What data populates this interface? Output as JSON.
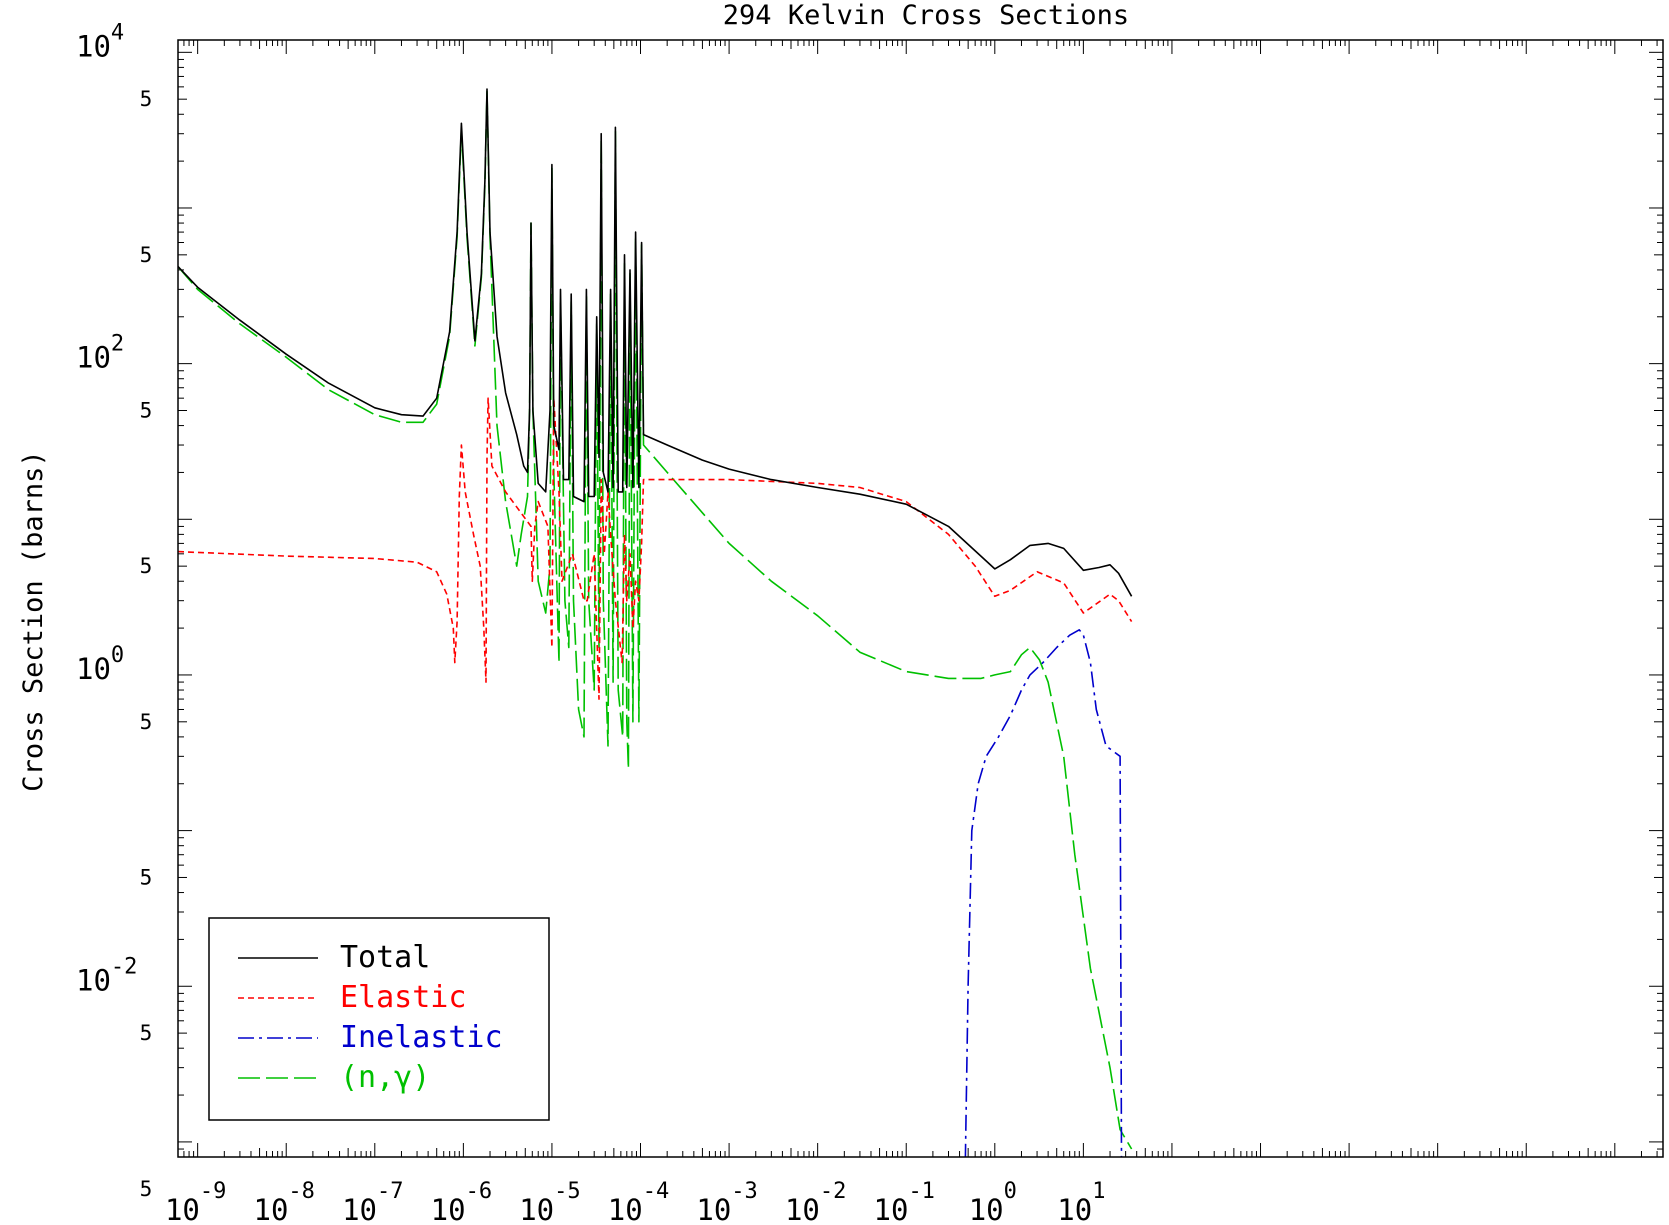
{
  "chart_data": {
    "type": "line",
    "title": "294 Kelvin Cross Sections",
    "ylabel": "Cross Section (barns)",
    "xlabel": "",
    "x_scale": "log",
    "y_scale": "log",
    "xlim": [
      6e-10,
      35000000.0
    ],
    "ylim": [
      0.0008,
      12000
    ],
    "x_ticks": [
      {
        "value": 1e-09,
        "base": "10",
        "exp": "-9"
      },
      {
        "value": 1e-08,
        "base": "10",
        "exp": "-8"
      },
      {
        "value": 1e-07,
        "base": "10",
        "exp": "-7"
      },
      {
        "value": 1e-06,
        "base": "10",
        "exp": "-6"
      },
      {
        "value": 1e-05,
        "base": "10",
        "exp": "-5"
      },
      {
        "value": 0.0001,
        "base": "10",
        "exp": "-4"
      },
      {
        "value": 0.001,
        "base": "10",
        "exp": "-3"
      },
      {
        "value": 0.01,
        "base": "10",
        "exp": "-2"
      },
      {
        "value": 0.1,
        "base": "10",
        "exp": "-1"
      },
      {
        "value": 1.0,
        "base": "10",
        "exp": "0"
      },
      {
        "value": 10.0,
        "base": "10",
        "exp": "1"
      }
    ],
    "y_ticks": [
      {
        "value": 10000,
        "base": "10",
        "exp": "4"
      },
      {
        "value": 100,
        "base": "10",
        "exp": "2"
      },
      {
        "value": 1,
        "base": "10",
        "exp": "0"
      },
      {
        "value": 0.01,
        "base": "10",
        "exp": "-2"
      }
    ],
    "y_minor_label": "5",
    "y_minor_values": [
      5000,
      500,
      50,
      5,
      0.5,
      0.05,
      0.005,
      0.0005
    ],
    "legend": {
      "position": "bottom-left",
      "entries": [
        {
          "label": "Total",
          "color": "#000000",
          "dash": "solid"
        },
        {
          "label": "Elastic",
          "color": "#ff0000",
          "dash": "short-dash"
        },
        {
          "label": "Inelastic",
          "color": "#0000cc",
          "dash": "dash-dot"
        },
        {
          "label": "(n,γ)",
          "color": "#00c000",
          "dash": "long-dash"
        }
      ]
    },
    "series": [
      {
        "name": "Total",
        "color": "#000000",
        "points": [
          [
            6e-10,
            420
          ],
          [
            1e-09,
            310
          ],
          [
            3e-09,
            190
          ],
          [
            1e-08,
            115
          ],
          [
            3e-08,
            75
          ],
          [
            1e-07,
            52
          ],
          [
            2e-07,
            47
          ],
          [
            3.5e-07,
            46
          ],
          [
            5e-07,
            60
          ],
          [
            7e-07,
            160
          ],
          [
            8.5e-07,
            700
          ],
          [
            9.5e-07,
            3500
          ],
          [
            1.1e-06,
            700
          ],
          [
            1.35e-06,
            140
          ],
          [
            1.6e-06,
            380
          ],
          [
            1.75e-06,
            1500
          ],
          [
            1.85e-06,
            5800
          ],
          [
            2e-06,
            700
          ],
          [
            2.4e-06,
            150
          ],
          [
            3e-06,
            65
          ],
          [
            4e-06,
            35
          ],
          [
            4.8e-06,
            22
          ],
          [
            5.3e-06,
            20
          ],
          [
            5.6e-06,
            50
          ],
          [
            5.8e-06,
            800
          ],
          [
            6.1e-06,
            50
          ],
          [
            7e-06,
            17
          ],
          [
            8.5e-06,
            15
          ],
          [
            9.5e-06,
            50
          ],
          [
            1e-05,
            1900
          ],
          [
            1.05e-05,
            40
          ],
          [
            1.2e-05,
            28
          ],
          [
            1.25e-05,
            300
          ],
          [
            1.35e-05,
            18
          ],
          [
            1.55e-05,
            18
          ],
          [
            1.65e-05,
            280
          ],
          [
            1.75e-05,
            14
          ],
          [
            2.3e-05,
            13
          ],
          [
            2.45e-05,
            300
          ],
          [
            2.6e-05,
            14
          ],
          [
            3e-05,
            14
          ],
          [
            3.2e-05,
            200
          ],
          [
            3.4e-05,
            25
          ],
          [
            3.6e-05,
            3000
          ],
          [
            3.8e-05,
            20
          ],
          [
            4.3e-05,
            15
          ],
          [
            4.6e-05,
            300
          ],
          [
            4.9e-05,
            16
          ],
          [
            5.2e-05,
            3300
          ],
          [
            5.6e-05,
            15
          ],
          [
            6.3e-05,
            15
          ],
          [
            6.6e-05,
            500
          ],
          [
            7e-05,
            16
          ],
          [
            7.6e-05,
            400
          ],
          [
            8.2e-05,
            16
          ],
          [
            8.8e-05,
            700
          ],
          [
            9.6e-05,
            16
          ],
          [
            0.000103,
            600
          ],
          [
            0.000108,
            35
          ],
          [
            0.0002,
            30
          ],
          [
            0.0005,
            24
          ],
          [
            0.001,
            21
          ],
          [
            0.003,
            18
          ],
          [
            0.01,
            16
          ],
          [
            0.03,
            14.5
          ],
          [
            0.1,
            12.5
          ],
          [
            0.3,
            9
          ],
          [
            1.0,
            4.8
          ],
          [
            1.5,
            5.5
          ],
          [
            2.5,
            6.8
          ],
          [
            4.0,
            7
          ],
          [
            6.0,
            6.5
          ],
          [
            10.0,
            4.7
          ],
          [
            15.0,
            4.9
          ],
          [
            20.0,
            5.1
          ],
          [
            25.0,
            4.5
          ],
          [
            35.0,
            3.2
          ]
        ]
      },
      {
        "name": "Elastic",
        "color": "#ff0000",
        "points": [
          [
            6e-10,
            6.2
          ],
          [
            1e-08,
            5.8
          ],
          [
            1e-07,
            5.6
          ],
          [
            3e-07,
            5.3
          ],
          [
            5e-07,
            4.6
          ],
          [
            6.5e-07,
            3.3
          ],
          [
            7.7e-07,
            2.0
          ],
          [
            8e-07,
            1.2
          ],
          [
            8.5e-07,
            2.2
          ],
          [
            9e-07,
            14
          ],
          [
            9.5e-07,
            30
          ],
          [
            1.05e-06,
            15
          ],
          [
            1.3e-06,
            8
          ],
          [
            1.55e-06,
            5
          ],
          [
            1.7e-06,
            2
          ],
          [
            1.8e-06,
            0.9
          ],
          [
            1.85e-06,
            25
          ],
          [
            1.9e-06,
            60
          ],
          [
            2.1e-06,
            22
          ],
          [
            3e-06,
            15
          ],
          [
            5.8e-06,
            9
          ],
          [
            6e-06,
            4
          ],
          [
            6.4e-06,
            9
          ],
          [
            7e-06,
            13
          ],
          [
            9e-06,
            9
          ],
          [
            1e-05,
            1.5
          ],
          [
            1.05e-05,
            60
          ],
          [
            1.2e-05,
            15
          ],
          [
            1.3e-05,
            4
          ],
          [
            1.7e-05,
            6
          ],
          [
            2.3e-05,
            3
          ],
          [
            2.5e-05,
            3
          ],
          [
            3e-05,
            6
          ],
          [
            3.4e-05,
            0.7
          ],
          [
            3.6e-05,
            18
          ],
          [
            3.9e-05,
            6
          ],
          [
            4.3e-05,
            15
          ],
          [
            4.6e-05,
            8
          ],
          [
            5.2e-05,
            3
          ],
          [
            6.2e-05,
            1.2
          ],
          [
            6.6e-05,
            8
          ],
          [
            7e-05,
            3
          ],
          [
            7.6e-05,
            6
          ],
          [
            8.2e-05,
            2
          ],
          [
            8.8e-05,
            4
          ],
          [
            9.6e-05,
            3
          ],
          [
            0.000103,
            7
          ],
          [
            0.000108,
            18
          ],
          [
            0.001,
            18
          ],
          [
            0.01,
            17
          ],
          [
            0.03,
            16
          ],
          [
            0.1,
            13
          ],
          [
            0.3,
            8
          ],
          [
            0.6,
            5
          ],
          [
            1.0,
            3.2
          ],
          [
            1.5,
            3.5
          ],
          [
            3.0,
            4.6
          ],
          [
            6.0,
            3.9
          ],
          [
            10.0,
            2.5
          ],
          [
            20.0,
            3.3
          ],
          [
            25.0,
            3.0
          ],
          [
            35.0,
            2.2
          ]
        ]
      },
      {
        "name": "Inelastic",
        "color": "#0000cc",
        "points": [
          [
            0.46,
            0.0005
          ],
          [
            0.5,
            0.01
          ],
          [
            0.55,
            0.1
          ],
          [
            0.65,
            0.2
          ],
          [
            0.8,
            0.3
          ],
          [
            1.1,
            0.4
          ],
          [
            1.5,
            0.55
          ],
          [
            2.0,
            0.8
          ],
          [
            2.5,
            1.0
          ],
          [
            3.5,
            1.2
          ],
          [
            5,
            1.5
          ],
          [
            7,
            1.8
          ],
          [
            9,
            1.95
          ],
          [
            10,
            1.8
          ],
          [
            12,
            1.2
          ],
          [
            14,
            0.6
          ],
          [
            18,
            0.35
          ],
          [
            26,
            0.3
          ],
          [
            27,
            0.0005
          ]
        ]
      },
      {
        "name": "(n,γ)",
        "color": "#00c000",
        "points": [
          [
            6e-10,
            420
          ],
          [
            1e-09,
            300
          ],
          [
            3e-09,
            180
          ],
          [
            1e-08,
            110
          ],
          [
            3e-08,
            68
          ],
          [
            1e-07,
            47
          ],
          [
            2e-07,
            42
          ],
          [
            3.5e-07,
            42
          ],
          [
            5e-07,
            55
          ],
          [
            7e-07,
            150
          ],
          [
            8.5e-07,
            650
          ],
          [
            9.5e-07,
            3200
          ],
          [
            1.1e-06,
            650
          ],
          [
            1.35e-06,
            130
          ],
          [
            1.6e-06,
            360
          ],
          [
            1.75e-06,
            1400
          ],
          [
            1.85e-06,
            5600
          ],
          [
            2e-06,
            650
          ],
          [
            2.4e-06,
            40
          ],
          [
            3e-06,
            13
          ],
          [
            4e-06,
            5
          ],
          [
            4.5e-06,
            8
          ],
          [
            5.3e-06,
            14
          ],
          [
            5.6e-06,
            50
          ],
          [
            5.8e-06,
            800
          ],
          [
            6.1e-06,
            50
          ],
          [
            7e-06,
            4
          ],
          [
            8.5e-06,
            2.5
          ],
          [
            9.5e-06,
            5
          ],
          [
            1e-05,
            1800
          ],
          [
            1.05e-05,
            20
          ],
          [
            1.2e-05,
            1.2
          ],
          [
            1.25e-05,
            250
          ],
          [
            1.4e-05,
            3
          ],
          [
            1.55e-05,
            1.5
          ],
          [
            1.65e-05,
            250
          ],
          [
            1.75e-05,
            3
          ],
          [
            2e-05,
            0.6
          ],
          [
            2.3e-05,
            0.4
          ],
          [
            2.45e-05,
            280
          ],
          [
            2.6e-05,
            3
          ],
          [
            3e-05,
            0.8
          ],
          [
            3.2e-05,
            180
          ],
          [
            3.4e-05,
            1.5
          ],
          [
            3.6e-05,
            2800
          ],
          [
            3.8e-05,
            3
          ],
          [
            4.3e-05,
            0.35
          ],
          [
            4.6e-05,
            280
          ],
          [
            4.9e-05,
            0.9
          ],
          [
            5.2e-05,
            3100
          ],
          [
            5.6e-05,
            0.8
          ],
          [
            6.3e-05,
            0.4
          ],
          [
            6.6e-05,
            450
          ],
          [
            7e-05,
            0.5
          ],
          [
            7.3e-05,
            0.25
          ],
          [
            7.6e-05,
            380
          ],
          [
            8.2e-05,
            0.5
          ],
          [
            8.8e-05,
            650
          ],
          [
            9.6e-05,
            0.5
          ],
          [
            0.000103,
            580
          ],
          [
            0.000108,
            30
          ],
          [
            0.0002,
            20
          ],
          [
            0.0005,
            11
          ],
          [
            0.001,
            7
          ],
          [
            0.003,
            4
          ],
          [
            0.01,
            2.4
          ],
          [
            0.03,
            1.4
          ],
          [
            0.1,
            1.05
          ],
          [
            0.3,
            0.95
          ],
          [
            0.7,
            0.95
          ],
          [
            1.0,
            1.0
          ],
          [
            1.5,
            1.05
          ],
          [
            2.0,
            1.35
          ],
          [
            2.5,
            1.5
          ],
          [
            3.2,
            1.25
          ],
          [
            4,
            0.9
          ],
          [
            6,
            0.3
          ],
          [
            8,
            0.07
          ],
          [
            12,
            0.013
          ],
          [
            20,
            0.003
          ],
          [
            26,
            0.0012
          ],
          [
            35,
            0.0009
          ]
        ]
      }
    ]
  }
}
